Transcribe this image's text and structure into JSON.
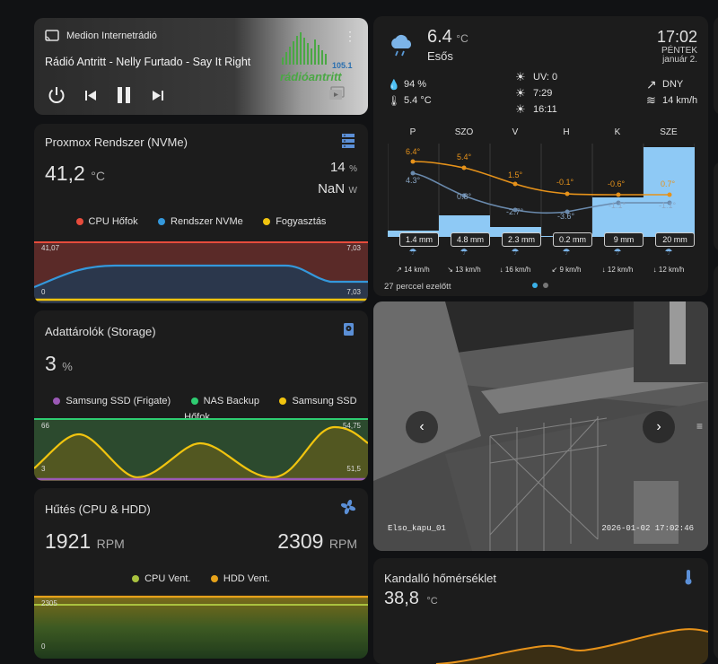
{
  "media": {
    "source": "Medion Internetrádió",
    "track": "Rádió Antritt - Nelly Furtado - Say It Right",
    "logo_text": "rádióantritt",
    "logo_freq": "105.1"
  },
  "proxmox": {
    "title": "Proxmox Rendszer (NVMe)",
    "temp_value": "41,2",
    "temp_unit": "°C",
    "pct_value": "14",
    "pct_unit": "%",
    "nan_value": "NaN",
    "nan_unit": "W",
    "legend": [
      "CPU Hőfok",
      "Rendszer NVMe",
      "Fogyasztás"
    ],
    "colors": {
      "cpu": "#e74c3c",
      "nvme": "#3498db",
      "power": "#f1c40f"
    },
    "y_left_top": "41,07",
    "y_left_bottom": "0",
    "y_right_top": "7,03",
    "y_right_bottom": "7,03"
  },
  "storage": {
    "title": "Adattárolók (Storage)",
    "value": "3",
    "unit": "%",
    "legend": [
      "Samsung SSD (Frigate)",
      "NAS Backup",
      "Samsung SSD Hőfok"
    ],
    "colors": {
      "frigate": "#9b59b6",
      "nas": "#2ecc71",
      "temp": "#f1c40f"
    },
    "y_left_top": "66",
    "y_left_bottom": "3",
    "y_right_top": "54,75",
    "y_right_bottom": "51,5"
  },
  "cooling": {
    "title": "Hűtés (CPU & HDD)",
    "cpu_value": "1921",
    "cpu_unit": "RPM",
    "hdd_value": "2309",
    "hdd_unit": "RPM",
    "legend": [
      "CPU Vent.",
      "HDD Vent."
    ],
    "colors": {
      "cpu": "#a9c23f",
      "hdd": "#e6a21a"
    },
    "y_top": "2305",
    "y_bottom": "0"
  },
  "weather": {
    "temp": "6.4",
    "temp_unit": "°C",
    "condition": "Esős",
    "time": "17:02",
    "weekday": "PÉNTEK",
    "date": "január 2.",
    "humidity": "94 %",
    "dew": "5.4 °C",
    "uv": "UV: 0",
    "sunrise": "7:29",
    "sunset": "16:11",
    "wind_dir": "DNY",
    "wind_speed": "14 km/h",
    "updated": "27 perccel ezelőtt",
    "days": [
      "P",
      "SZO",
      "V",
      "H",
      "K",
      "SZE"
    ],
    "highs": [
      "6.4°",
      "5.4°",
      "1.5°",
      "-0.1°",
      "-0.6°",
      "0.7°"
    ],
    "lows": [
      "4.3°",
      "0.8°",
      "-2.7°",
      "-3.6°",
      "-1.1°",
      "-1.1°"
    ],
    "rain": [
      "1.4 mm",
      "4.8 mm",
      "2.3 mm",
      "0.2 mm",
      "9 mm",
      "20 mm"
    ],
    "winds": [
      "14 km/h",
      "13 km/h",
      "16 km/h",
      "9 km/h",
      "12 km/h",
      "12 km/h"
    ],
    "wind_arrows": [
      "↗",
      "↘",
      "↓",
      "↙",
      "↓",
      "↓"
    ]
  },
  "camera": {
    "label": "Elso_kapu_01",
    "timestamp": "2026-01-02 17:02:46"
  },
  "fireplace": {
    "title": "Kandalló hőmérséklet",
    "value": "38,8",
    "unit": "°C"
  }
}
